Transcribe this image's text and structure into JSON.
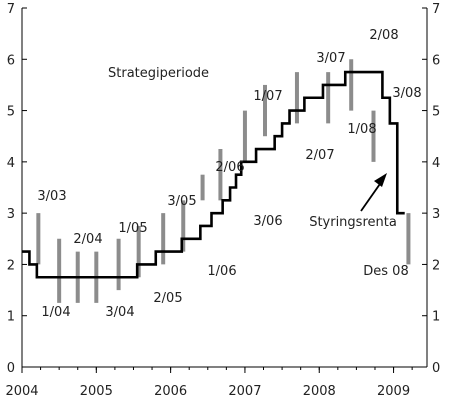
{
  "chart_data": {
    "type": "line",
    "title": "",
    "xlabel": "",
    "ylabel": "",
    "xlim": [
      2004.0,
      2009.45
    ],
    "ylim": [
      0,
      7
    ],
    "x_ticks": [
      2004,
      2005,
      2006,
      2007,
      2008,
      2009
    ],
    "y_ticks": [
      0,
      1,
      2,
      3,
      4,
      5,
      6,
      7
    ],
    "grid": false,
    "legend": "none",
    "colors": {
      "policy_rate": "#000000",
      "interval_bars": "#8c8c8c",
      "axes": "#000000"
    },
    "policy_rate": {
      "name": "Styringsrenta",
      "x": [
        2004.0,
        2004.1,
        2004.2,
        2005.55,
        2005.8,
        2006.15,
        2006.4,
        2006.55,
        2006.7,
        2006.8,
        2006.88,
        2006.95,
        2007.05,
        2007.15,
        2007.4,
        2007.5,
        2007.6,
        2007.7,
        2007.8,
        2008.05,
        2008.35,
        2008.5,
        2008.85,
        2008.95,
        2009.05,
        2009.15
      ],
      "y": [
        2.25,
        2.0,
        1.75,
        2.0,
        2.25,
        2.5,
        2.75,
        3.0,
        3.25,
        3.5,
        3.75,
        4.0,
        4.0,
        4.25,
        4.5,
        4.75,
        5.0,
        5.0,
        5.25,
        5.5,
        5.75,
        5.75,
        5.25,
        4.75,
        3.0,
        3.0
      ]
    },
    "strategy_intervals": [
      {
        "x": 2004.22,
        "low": 2.0,
        "high": 3.0,
        "label": "3/03"
      },
      {
        "x": 2004.5,
        "low": 1.25,
        "high": 2.5,
        "label": "1/04"
      },
      {
        "x": 2004.75,
        "low": 1.25,
        "high": 2.25,
        "label": "2/04"
      },
      {
        "x": 2005.0,
        "low": 1.25,
        "high": 2.25,
        "label": "3/04"
      },
      {
        "x": 2005.3,
        "low": 1.5,
        "high": 2.5,
        "label": "1/05"
      },
      {
        "x": 2005.57,
        "low": 1.75,
        "high": 2.75,
        "label": "2/05"
      },
      {
        "x": 2005.9,
        "low": 2.0,
        "high": 3.0,
        "label": "3/05"
      },
      {
        "x": 2006.17,
        "low": 2.25,
        "high": 3.25,
        "label": "1/06"
      },
      {
        "x": 2006.43,
        "low": 3.25,
        "high": 3.75,
        "label": "2/06"
      },
      {
        "x": 2006.67,
        "low": 3.25,
        "high": 4.25,
        "label": "3/06"
      },
      {
        "x": 2007.0,
        "low": 4.0,
        "high": 5.0,
        "label": "1/07"
      },
      {
        "x": 2007.27,
        "low": 4.5,
        "high": 5.5,
        "label": "2/07"
      },
      {
        "x": 2007.7,
        "low": 4.75,
        "high": 5.75,
        "label": "3/07"
      },
      {
        "x": 2008.12,
        "low": 4.75,
        "high": 5.75,
        "label": "1/08"
      },
      {
        "x": 2008.43,
        "low": 5.0,
        "high": 6.0,
        "label": "2/08"
      },
      {
        "x": 2008.73,
        "low": 4.0,
        "high": 5.0,
        "label": "3/08"
      },
      {
        "x": 2009.2,
        "low": 2.0,
        "high": 3.0,
        "label": "Des 08"
      }
    ],
    "annotations": [
      {
        "text": "Strategiperiode"
      },
      {
        "text": "Styringsrenta"
      }
    ]
  }
}
